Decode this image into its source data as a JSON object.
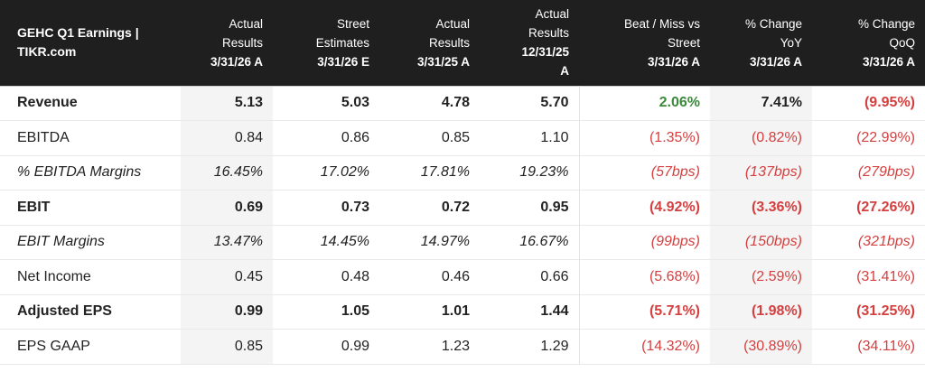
{
  "header": {
    "title": "GEHC Q1 Earnings |",
    "subtitle": "TIKR.com",
    "columns": [
      {
        "lines": [
          "Actual",
          "Results"
        ],
        "date": "3/31/26 A"
      },
      {
        "lines": [
          "Street",
          "Estimates"
        ],
        "date": "3/31/26 E"
      },
      {
        "lines": [
          "Actual",
          "Results"
        ],
        "date": "3/31/25 A"
      },
      {
        "lines": [
          "Actual",
          "Results",
          "12/31/25"
        ],
        "date": "A"
      },
      {
        "lines": [
          "Beat / Miss vs",
          "Street"
        ],
        "date": "3/31/26 A"
      },
      {
        "lines": [
          "% Change",
          "YoY"
        ],
        "date": "3/31/26 A"
      },
      {
        "lines": [
          "% Change",
          "QoQ"
        ],
        "date": "3/31/26 A"
      }
    ]
  },
  "rows": [
    {
      "label": "Revenue",
      "values": [
        "5.13",
        "5.03",
        "4.78",
        "5.70",
        "2.06%",
        "7.41%",
        "(9.95%)"
      ]
    },
    {
      "label": "EBITDA",
      "values": [
        "0.84",
        "0.86",
        "0.85",
        "1.10",
        "(1.35%)",
        "(0.82%)",
        "(22.99%)"
      ]
    },
    {
      "label": "% EBITDA Margins",
      "values": [
        "16.45%",
        "17.02%",
        "17.81%",
        "19.23%",
        "(57bps)",
        "(137bps)",
        "(279bps)"
      ]
    },
    {
      "label": "EBIT",
      "values": [
        "0.69",
        "0.73",
        "0.72",
        "0.95",
        "(4.92%)",
        "(3.36%)",
        "(27.26%)"
      ]
    },
    {
      "label": "EBIT Margins",
      "values": [
        "13.47%",
        "14.45%",
        "14.97%",
        "16.67%",
        "(99bps)",
        "(150bps)",
        "(321bps)"
      ]
    },
    {
      "label": "Net Income",
      "values": [
        "0.45",
        "0.48",
        "0.46",
        "0.66",
        "(5.68%)",
        "(2.59%)",
        "(31.41%)"
      ]
    },
    {
      "label": "Adjusted EPS",
      "values": [
        "0.99",
        "1.05",
        "1.01",
        "1.44",
        "(5.71%)",
        "(1.98%)",
        "(31.25%)"
      ]
    },
    {
      "label": "EPS GAAP",
      "values": [
        "0.85",
        "0.99",
        "1.23",
        "1.29",
        "(14.32%)",
        "(30.89%)",
        "(34.11%)"
      ]
    }
  ],
  "colors": {
    "header_bg": "#1f1f1f",
    "positive": "#3a8a3a",
    "negative": "#d43f3f",
    "shaded_column": "#f4f4f4"
  }
}
